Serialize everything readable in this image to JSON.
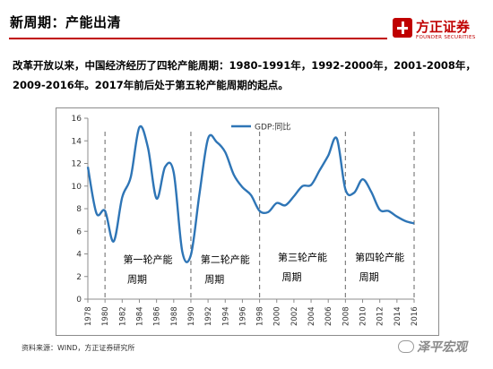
{
  "header": {
    "title": "新周期：产能出清",
    "logo_name": "方正证券",
    "logo_sub": "FOUNDER SECURITIES"
  },
  "intro_text": "改革开放以来，中国经济经历了四轮产能周期：1980-1991年，1992-2000年，2001-2008年，2009-2016年。2017年前后处于第五轮产能周期的起点。",
  "source_text": "资料来源：WIND，方正证券研究所",
  "watermark_text": "泽平宏观",
  "colors": {
    "accent": "#c00000",
    "line": "#2e75b6",
    "divider": "#7f7f7f"
  },
  "chart_data": {
    "type": "line",
    "legend": "GDP:同比",
    "legend_position": "top",
    "ylim": [
      0,
      16
    ],
    "yticks": [
      0,
      2,
      4,
      6,
      8,
      10,
      12,
      14,
      16
    ],
    "xticks": [
      "1978",
      "1980",
      "1982",
      "1984",
      "1986",
      "1988",
      "1990",
      "1992",
      "1994",
      "1996",
      "1998",
      "2000",
      "2002",
      "2004",
      "2006",
      "2008",
      "2010",
      "2012",
      "2014",
      "2016"
    ],
    "xlim": [
      1978,
      2016
    ],
    "grid": false,
    "series": [
      {
        "name": "GDP:同比",
        "points": [
          [
            1978,
            11.7
          ],
          [
            1979,
            7.6
          ],
          [
            1980,
            7.8
          ],
          [
            1981,
            5.1
          ],
          [
            1982,
            9.0
          ],
          [
            1983,
            10.8
          ],
          [
            1984,
            15.2
          ],
          [
            1985,
            13.4
          ],
          [
            1986,
            8.9
          ],
          [
            1987,
            11.7
          ],
          [
            1988,
            11.2
          ],
          [
            1989,
            4.2
          ],
          [
            1990,
            3.9
          ],
          [
            1991,
            9.3
          ],
          [
            1992,
            14.2
          ],
          [
            1993,
            13.9
          ],
          [
            1994,
            13.0
          ],
          [
            1995,
            11.0
          ],
          [
            1996,
            9.9
          ],
          [
            1997,
            9.2
          ],
          [
            1998,
            7.8
          ],
          [
            1999,
            7.7
          ],
          [
            2000,
            8.5
          ],
          [
            2001,
            8.3
          ],
          [
            2002,
            9.1
          ],
          [
            2003,
            10.0
          ],
          [
            2004,
            10.1
          ],
          [
            2005,
            11.4
          ],
          [
            2006,
            12.7
          ],
          [
            2007,
            14.2
          ],
          [
            2008,
            9.7
          ],
          [
            2009,
            9.4
          ],
          [
            2010,
            10.6
          ],
          [
            2011,
            9.5
          ],
          [
            2012,
            7.9
          ],
          [
            2013,
            7.8
          ],
          [
            2014,
            7.3
          ],
          [
            2015,
            6.9
          ],
          [
            2016,
            6.7
          ]
        ]
      }
    ],
    "dividers": [
      1980,
      1990,
      1998,
      2008,
      2016
    ],
    "annotations": [
      {
        "text": "第一轮产能",
        "text2": "周期",
        "x": 1985,
        "y": 3.2
      },
      {
        "text": "第二轮产能",
        "text2": "周期",
        "x": 1994,
        "y": 3.2
      },
      {
        "text": "第三轮产能",
        "text2": "周期",
        "x": 2003,
        "y": 3.4
      },
      {
        "text": "第四轮产能",
        "text2": "周期",
        "x": 2012,
        "y": 3.4
      }
    ]
  }
}
